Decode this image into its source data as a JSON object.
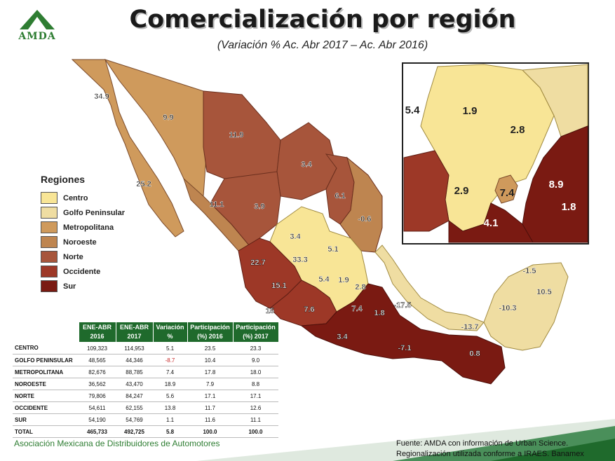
{
  "header": {
    "title": "Comercialización por región",
    "subtitle": "(Variación % Ac. Abr 2017 – Ac. Abr 2016)",
    "logo_text": "AMDA"
  },
  "legend": {
    "title": "Regiones",
    "items": [
      {
        "label": "Centro",
        "color": "#f8e596"
      },
      {
        "label": "Golfo Peninsular",
        "color": "#efdda2"
      },
      {
        "label": "Metropolitana",
        "color": "#cf9a5c"
      },
      {
        "label": "Noroeste",
        "color": "#be8550"
      },
      {
        "label": "Norte",
        "color": "#a7553b"
      },
      {
        "label": "Occidente",
        "color": "#9d3827"
      },
      {
        "label": "Sur",
        "color": "#7a1a12"
      }
    ]
  },
  "map_labels": {
    "main": [
      "34.9",
      "9.9",
      "25.2",
      "11.9",
      "3.4",
      "11.1",
      "3.9",
      "6.1",
      "-0.6",
      "3.4",
      "5.1",
      "33.3",
      "22.7",
      "5.4",
      "1.9",
      "2.8",
      "15.1",
      "15",
      "7.6",
      "7.4",
      "1.8",
      "-17.5",
      "3.4",
      "-7.1",
      "0.8",
      "-13.7",
      "-10.3",
      "-1.5",
      "10.5"
    ],
    "inset": [
      "5.4",
      "1.9",
      "2.8",
      "2.9",
      "7.4",
      "8.9",
      "1.8",
      "4.1"
    ]
  },
  "table": {
    "headers": [
      "ENE-ABR 2016",
      "ENE-ABR 2017",
      "Variación %",
      "Participación (%) 2016",
      "Participación (%) 2017"
    ],
    "rows": [
      {
        "region": "CENTRO",
        "v2016": "109,323",
        "v2017": "114,953",
        "var": "5.1",
        "p2016": "23.5",
        "p2017": "23.3",
        "neg": false
      },
      {
        "region": "GOLFO PENINSULAR",
        "v2016": "48,565",
        "v2017": "44,346",
        "var": "-8.7",
        "p2016": "10.4",
        "p2017": "9.0",
        "neg": true
      },
      {
        "region": "METROPOLITANA",
        "v2016": "82,676",
        "v2017": "88,785",
        "var": "7.4",
        "p2016": "17.8",
        "p2017": "18.0",
        "neg": false
      },
      {
        "region": "NOROESTE",
        "v2016": "36,562",
        "v2017": "43,470",
        "var": "18.9",
        "p2016": "7.9",
        "p2017": "8.8",
        "neg": false
      },
      {
        "region": "NORTE",
        "v2016": "79,806",
        "v2017": "84,247",
        "var": "5.6",
        "p2016": "17.1",
        "p2017": "17.1",
        "neg": false
      },
      {
        "region": "OCCIDENTE",
        "v2016": "54,611",
        "v2017": "62,155",
        "var": "13.8",
        "p2016": "11.7",
        "p2017": "12.6",
        "neg": false
      },
      {
        "region": "SUR",
        "v2016": "54,190",
        "v2017": "54,769",
        "var": "1.1",
        "p2016": "11.6",
        "p2017": "11.1",
        "neg": false
      },
      {
        "region": "TOTAL",
        "v2016": "465,733",
        "v2017": "492,725",
        "var": "5.8",
        "p2016": "100.0",
        "p2017": "100.0",
        "neg": false
      }
    ]
  },
  "footer": {
    "organization": "Asociación Mexicana de Distribuidores de Automotores",
    "source_line1": "Fuente: AMDA con información de Urban Science.",
    "source_line2": "Regionalización utilizada conforme a IRAES. Banamex"
  },
  "chart_data": {
    "type": "table",
    "title": "Comercialización por región",
    "subtitle": "(Variación % Ac. Abr 2017 – Ac. Abr 2016)",
    "columns": [
      "ENE-ABR 2016",
      "ENE-ABR 2017",
      "Variación %",
      "Participación (%) 2016",
      "Participación (%) 2017"
    ],
    "categories": [
      "CENTRO",
      "GOLFO PENINSULAR",
      "METROPOLITANA",
      "NOROESTE",
      "NORTE",
      "OCCIDENTE",
      "SUR",
      "TOTAL"
    ],
    "series": [
      {
        "name": "ENE-ABR 2016",
        "values": [
          109323,
          48565,
          82676,
          36562,
          79806,
          54611,
          54190,
          465733
        ]
      },
      {
        "name": "ENE-ABR 2017",
        "values": [
          114953,
          44346,
          88785,
          43470,
          84247,
          62155,
          54769,
          492725
        ]
      },
      {
        "name": "Variación %",
        "values": [
          5.1,
          -8.7,
          7.4,
          18.9,
          5.6,
          13.8,
          1.1,
          5.8
        ]
      },
      {
        "name": "Participación (%) 2016",
        "values": [
          23.5,
          10.4,
          17.8,
          7.9,
          17.1,
          11.7,
          11.6,
          100.0
        ]
      },
      {
        "name": "Participación (%) 2017",
        "values": [
          23.3,
          9.0,
          18.0,
          8.8,
          17.1,
          12.6,
          11.1,
          100.0
        ]
      }
    ],
    "legend": [
      "Centro",
      "Golfo Peninsular",
      "Metropolitana",
      "Noroeste",
      "Norte",
      "Occidente",
      "Sur"
    ]
  }
}
